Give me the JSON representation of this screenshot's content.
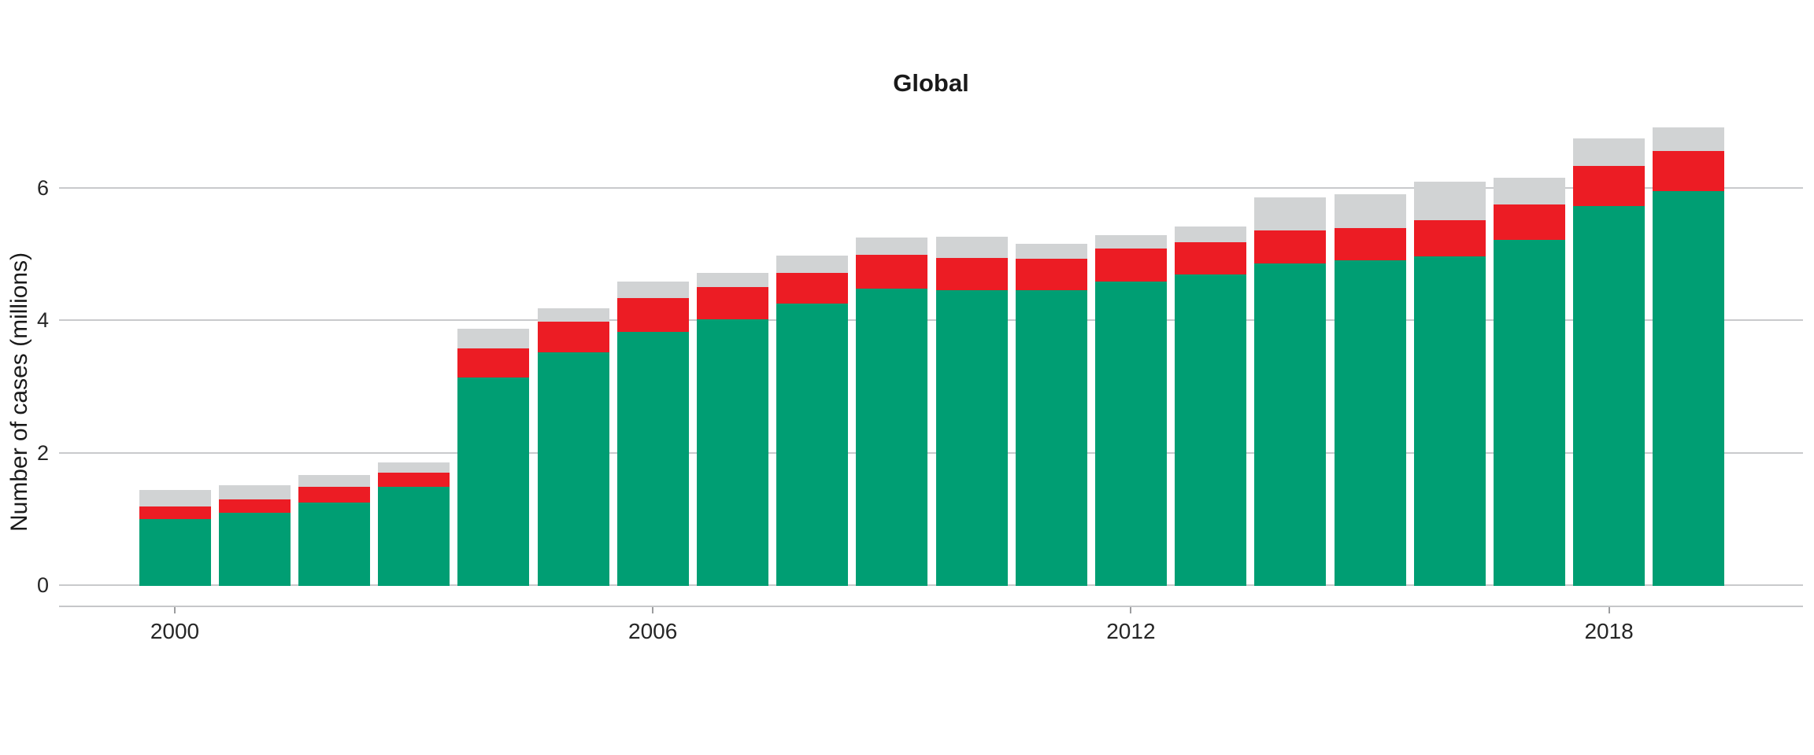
{
  "chart_data": {
    "type": "bar",
    "stacked": true,
    "title": "Global",
    "xlabel": "",
    "ylabel": "Number of cases (millions)",
    "categories": [
      2000,
      2001,
      2002,
      2003,
      2004,
      2005,
      2006,
      2007,
      2008,
      2009,
      2010,
      2011,
      2012,
      2013,
      2014,
      2015,
      2016,
      2017,
      2018,
      2019
    ],
    "series": [
      {
        "name": "green-segment",
        "color": "#009E73",
        "values": [
          1.0,
          1.09,
          1.25,
          1.48,
          3.14,
          3.52,
          3.82,
          4.01,
          4.25,
          4.48,
          4.45,
          4.45,
          4.58,
          4.69,
          4.86,
          4.9,
          4.96,
          5.21,
          5.72,
          5.95
        ]
      },
      {
        "name": "red-segment",
        "color": "#EC1C24",
        "values": [
          0.19,
          0.21,
          0.23,
          0.22,
          0.43,
          0.46,
          0.51,
          0.49,
          0.46,
          0.51,
          0.49,
          0.48,
          0.5,
          0.49,
          0.5,
          0.49,
          0.55,
          0.54,
          0.61,
          0.6
        ]
      },
      {
        "name": "gray-segment",
        "color": "#D1D3D4",
        "values": [
          0.25,
          0.21,
          0.18,
          0.15,
          0.3,
          0.2,
          0.25,
          0.22,
          0.27,
          0.26,
          0.32,
          0.22,
          0.2,
          0.24,
          0.49,
          0.51,
          0.58,
          0.4,
          0.42,
          0.36
        ]
      }
    ],
    "totals": [
      1.44,
      1.51,
      1.66,
      1.85,
      3.87,
      4.18,
      4.58,
      4.72,
      4.98,
      5.25,
      5.26,
      5.15,
      5.28,
      5.42,
      5.85,
      5.9,
      6.09,
      6.15,
      6.75,
      6.91
    ],
    "ylim": [
      0,
      7.2
    ],
    "yticks": [
      0,
      2,
      4,
      6
    ],
    "ytick_labels": [
      "0",
      "2",
      "4",
      "6"
    ],
    "xticks": [
      2000,
      2006,
      2012,
      2018
    ],
    "xtick_labels": [
      "2000",
      "2006",
      "2012",
      "2018"
    ],
    "grid": "horizontal",
    "legend": "none"
  }
}
